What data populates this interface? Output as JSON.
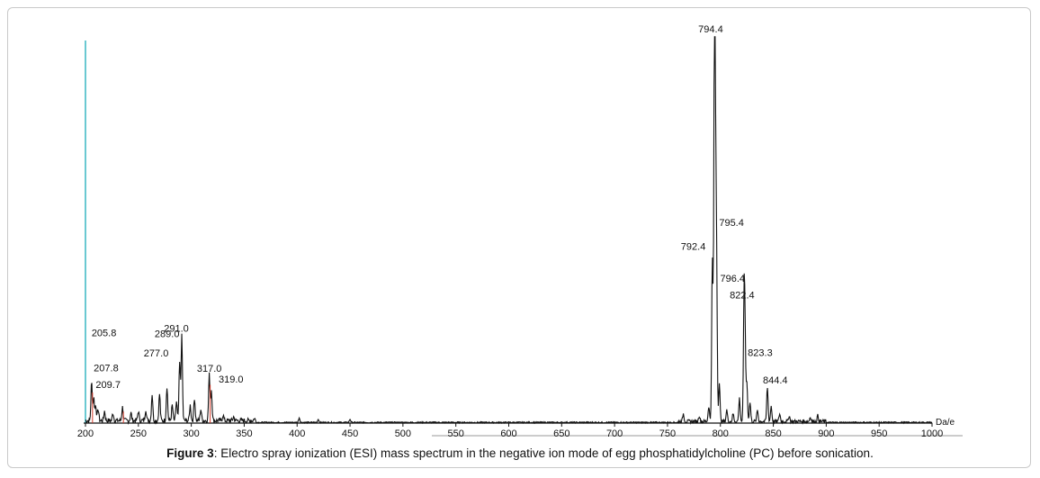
{
  "caption": {
    "figure_label": "Figure 3",
    "text": ": Electro spray ionization (ESI) mass spectrum in the negative ion mode of egg phosphatidylcholine (PC) before sonication."
  },
  "chart_data": {
    "type": "line",
    "title": "",
    "xlabel": "Da/e",
    "ylabel": "",
    "xlim": [
      200,
      1000
    ],
    "ylim": [
      0,
      100
    ],
    "xticks": [
      200,
      250,
      300,
      350,
      400,
      450,
      500,
      550,
      600,
      650,
      700,
      750,
      800,
      850,
      900,
      950,
      1000
    ],
    "grid": false,
    "peaks": [
      {
        "label": "205.8",
        "x": 205.8,
        "y": 10
      },
      {
        "label": "207.8",
        "x": 207.8,
        "y": 6
      },
      {
        "label": "209.7",
        "x": 209.7,
        "y": 4
      },
      {
        "label": "277.0",
        "x": 277.0,
        "y": 9
      },
      {
        "label": "289.0",
        "x": 289.0,
        "y": 15
      },
      {
        "label": "291.0",
        "x": 291.0,
        "y": 22
      },
      {
        "label": "317.0",
        "x": 317.0,
        "y": 12
      },
      {
        "label": "319.0",
        "x": 319.0,
        "y": 8
      },
      {
        "label": "792.4",
        "x": 792.4,
        "y": 42
      },
      {
        "label": "794.4",
        "x": 794.4,
        "y": 100
      },
      {
        "label": "795.4",
        "x": 795.4,
        "y": 45
      },
      {
        "label": "796.4",
        "x": 796.4,
        "y": 37
      },
      {
        "label": "822.4",
        "x": 822.4,
        "y": 31
      },
      {
        "label": "823.3",
        "x": 823.3,
        "y": 18
      },
      {
        "label": "844.4",
        "x": 844.4,
        "y": 9
      }
    ],
    "minor_peaks": [
      {
        "x": 212,
        "y": 3
      },
      {
        "x": 218,
        "y": 2.5
      },
      {
        "x": 226,
        "y": 2
      },
      {
        "x": 235,
        "y": 3.5
      },
      {
        "x": 243,
        "y": 2
      },
      {
        "x": 250,
        "y": 2.5
      },
      {
        "x": 257,
        "y": 3
      },
      {
        "x": 263,
        "y": 7
      },
      {
        "x": 270,
        "y": 7
      },
      {
        "x": 282,
        "y": 4
      },
      {
        "x": 286,
        "y": 5
      },
      {
        "x": 299,
        "y": 4
      },
      {
        "x": 303,
        "y": 6
      },
      {
        "x": 309,
        "y": 3
      },
      {
        "x": 330,
        "y": 1.5
      },
      {
        "x": 340,
        "y": 1
      },
      {
        "x": 360,
        "y": 1
      },
      {
        "x": 402,
        "y": 1.2
      },
      {
        "x": 420,
        "y": 0.8
      },
      {
        "x": 450,
        "y": 0.8
      },
      {
        "x": 765,
        "y": 2
      },
      {
        "x": 780,
        "y": 1.5
      },
      {
        "x": 789,
        "y": 4
      },
      {
        "x": 799,
        "y": 10
      },
      {
        "x": 806,
        "y": 3
      },
      {
        "x": 812,
        "y": 2
      },
      {
        "x": 818,
        "y": 6
      },
      {
        "x": 825,
        "y": 10
      },
      {
        "x": 828,
        "y": 5
      },
      {
        "x": 835,
        "y": 3
      },
      {
        "x": 848,
        "y": 4
      },
      {
        "x": 856,
        "y": 2
      },
      {
        "x": 865,
        "y": 1.5
      },
      {
        "x": 885,
        "y": 1.2
      },
      {
        "x": 892,
        "y": 1.5
      }
    ],
    "colors": {
      "trace": "#111111",
      "axis": "#111111",
      "y_axis_highlight": "#39b7c3",
      "peak_highlight": "#d23a2a"
    }
  }
}
